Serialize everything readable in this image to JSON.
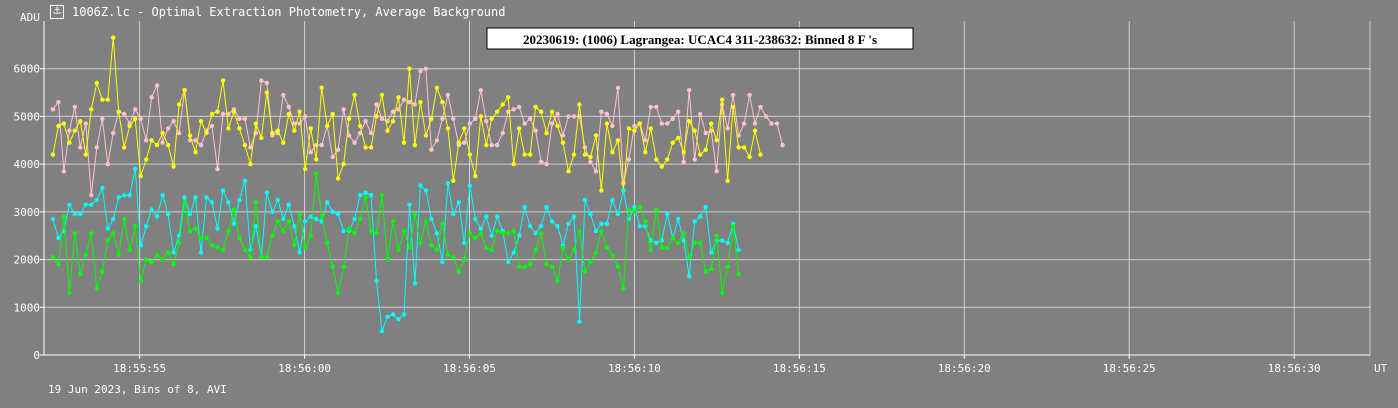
{
  "window": {
    "title": "1006Z.lc - Optimal Extraction Photometry, Average Background",
    "icon": "light-curve-app-icon"
  },
  "footer": {
    "text": "19 Jun 2023, Bins of 8, AVI"
  },
  "chart_data": {
    "type": "line",
    "title": "20230619: (1006) Lagrangea: UCAC4 311-238632: Binned 8 F 's",
    "ylabel": "ADU",
    "xlabel": "UT",
    "ylim": [
      0,
      7000
    ],
    "xlim_seconds": [
      52.1,
      92.3
    ],
    "grid": true,
    "y_ticks": [
      0,
      1000,
      2000,
      3000,
      4000,
      5000,
      6000
    ],
    "x_tick_labels": [
      "18:55:55",
      "18:56:00",
      "18:56:05",
      "18:56:10",
      "18:56:15",
      "18:56:20",
      "18:56:25",
      "18:56:30"
    ],
    "x_tick_values_seconds": [
      55,
      60,
      65,
      70,
      75,
      80,
      85,
      90
    ],
    "x_start_seconds": 52.37,
    "x_step_seconds": 0.1663,
    "colors": {
      "background": "#808080",
      "grid": "#d0d0d0",
      "axis": "#ffffff",
      "text": "#ffffff"
    },
    "series": [
      {
        "color": "#ffc0cb",
        "values": [
          5150,
          5300,
          3850,
          4700,
          5200,
          4350,
          4850,
          3350,
          4350,
          4950,
          4000,
          4650,
          5100,
          5050,
          4850,
          5150,
          4950,
          4500,
          5400,
          5650,
          4450,
          4750,
          4900,
          4650,
          5550,
          4500,
          4500,
          4400,
          4700,
          4800,
          3900,
          5050,
          5050,
          5150,
          4950,
          4950,
          4350,
          4650,
          5750,
          5700,
          4600,
          4650,
          5450,
          5200,
          4850,
          4850,
          5000,
          4250,
          4400,
          4400,
          4800,
          4150,
          4300,
          5150,
          4600,
          4450,
          4650,
          4900,
          4650,
          5250,
          4950,
          4900,
          5100,
          5150,
          5350,
          5300,
          5250,
          5950,
          6000,
          4300,
          4500,
          4950,
          5450,
          4950,
          4400,
          4450,
          4850,
          4950,
          5550,
          4900,
          4400,
          4400,
          4650,
          5100,
          5150,
          5200,
          4850,
          4950,
          4700,
          4050,
          4000,
          4850,
          5050,
          4600,
          5000,
          5000,
          5000,
          4350,
          4050,
          3850,
          5100,
          5050,
          4800,
          5600,
          3600,
          4100,
          4800,
          4850,
          4500,
          5200,
          5200,
          4850,
          4850,
          4950,
          5100,
          4050,
          5550,
          4100,
          5050,
          4650,
          4700,
          3850,
          5250,
          4750,
          5450,
          4600,
          4850,
          5450,
          4850,
          5200,
          5000,
          4850,
          4850,
          4400
        ]
      },
      {
        "color": "#ffff00",
        "values": [
          4200,
          4800,
          4850,
          4450,
          4700,
          4900,
          4200,
          5150,
          5700,
          5350,
          5350,
          6650,
          5100,
          4350,
          4800,
          4950,
          3750,
          4100,
          4500,
          4400,
          4650,
          4400,
          3950,
          5250,
          5550,
          4600,
          4250,
          4900,
          4650,
          5050,
          5100,
          5750,
          4750,
          5100,
          4750,
          4400,
          4000,
          4850,
          4550,
          5500,
          4650,
          4700,
          4450,
          5050,
          4700,
          5100,
          3900,
          4750,
          4100,
          5600,
          4800,
          5050,
          3700,
          4000,
          4950,
          5450,
          4800,
          4350,
          4350,
          5000,
          5450,
          4700,
          4900,
          5400,
          4450,
          6000,
          4400,
          5300,
          4600,
          4950,
          5600,
          5300,
          4750,
          3650,
          4450,
          4750,
          4200,
          3750,
          5000,
          4400,
          4950,
          5100,
          5250,
          5400,
          4000,
          4750,
          4200,
          4200,
          5200,
          5100,
          4650,
          5100,
          4800,
          4450,
          3850,
          4200,
          5250,
          4200,
          4150,
          4600,
          3450,
          4850,
          4250,
          4500,
          3450,
          4750,
          4700,
          4850,
          4250,
          4750,
          4100,
          3950,
          4100,
          4450,
          4550,
          4250,
          4900,
          4700,
          4200,
          4300,
          4850,
          4500,
          5350,
          3650,
          5200,
          4350,
          4350,
          4150,
          4700,
          4200
        ]
      },
      {
        "color": "#00ffff",
        "values": [
          2850,
          2450,
          2600,
          3150,
          2950,
          2950,
          3150,
          3150,
          3250,
          3500,
          2650,
          2850,
          3300,
          3350,
          3350,
          3900,
          2300,
          2700,
          3050,
          2900,
          3350,
          2950,
          2150,
          2500,
          3300,
          2950,
          3300,
          2150,
          3300,
          3200,
          2650,
          3450,
          3200,
          2750,
          3250,
          3650,
          2200,
          2700,
          2050,
          3400,
          3000,
          3250,
          2850,
          3150,
          2700,
          2150,
          2800,
          2900,
          2850,
          2800,
          3200,
          3000,
          2950,
          2600,
          2600,
          2850,
          3350,
          3400,
          3350,
          1550,
          500,
          800,
          850,
          750,
          850,
          3150,
          1500,
          3550,
          3450,
          2850,
          2550,
          1950,
          3600,
          2950,
          3200,
          2350,
          3550,
          2850,
          2650,
          2900,
          2500,
          2900,
          2600,
          1950,
          2150,
          2500,
          3100,
          2700,
          2550,
          2700,
          3100,
          2800,
          2700,
          2300,
          2750,
          2900,
          700,
          3250,
          2950,
          2600,
          2750,
          2750,
          3250,
          2950,
          3450,
          2850,
          3100,
          2700,
          2700,
          2400,
          2350,
          2400,
          2950,
          2450,
          2850,
          2400,
          1650,
          2800,
          2900,
          3100,
          2150,
          2400,
          2400,
          2350,
          2750,
          2200
        ]
      },
      {
        "color": "#00ff00",
        "values": [
          2050,
          1900,
          2900,
          1300,
          2550,
          1700,
          2100,
          2550,
          1400,
          1750,
          2400,
          2550,
          2100,
          2850,
          2200,
          2700,
          1550,
          2000,
          1950,
          2100,
          2000,
          2150,
          1900,
          2350,
          3200,
          2600,
          2650,
          2450,
          2450,
          2300,
          2250,
          2200,
          2600,
          3050,
          2450,
          2200,
          2050,
          3200,
          2050,
          2050,
          2500,
          2800,
          2600,
          2800,
          2300,
          2950,
          2250,
          2500,
          3800,
          2900,
          2350,
          1850,
          1300,
          1850,
          2650,
          2550,
          2850,
          3300,
          2600,
          2550,
          3350,
          2000,
          2800,
          2200,
          2600,
          2250,
          2950,
          2350,
          2800,
          2300,
          2200,
          2750,
          2100,
          2050,
          1750,
          2000,
          2550,
          2450,
          2550,
          2250,
          2200,
          2600,
          2550,
          2550,
          2600,
          1850,
          1850,
          1900,
          2200,
          2550,
          1900,
          1850,
          1550,
          2250,
          2000,
          2200,
          2600,
          1750,
          1950,
          2150,
          2600,
          2250,
          2100,
          1850,
          1400,
          3050,
          3000,
          3100,
          2800,
          2200,
          3050,
          2250,
          2250,
          2450,
          2350,
          2550,
          2050,
          2350,
          2350,
          1750,
          1800,
          2500,
          1300,
          1850,
          2700,
          1700
        ]
      }
    ]
  }
}
